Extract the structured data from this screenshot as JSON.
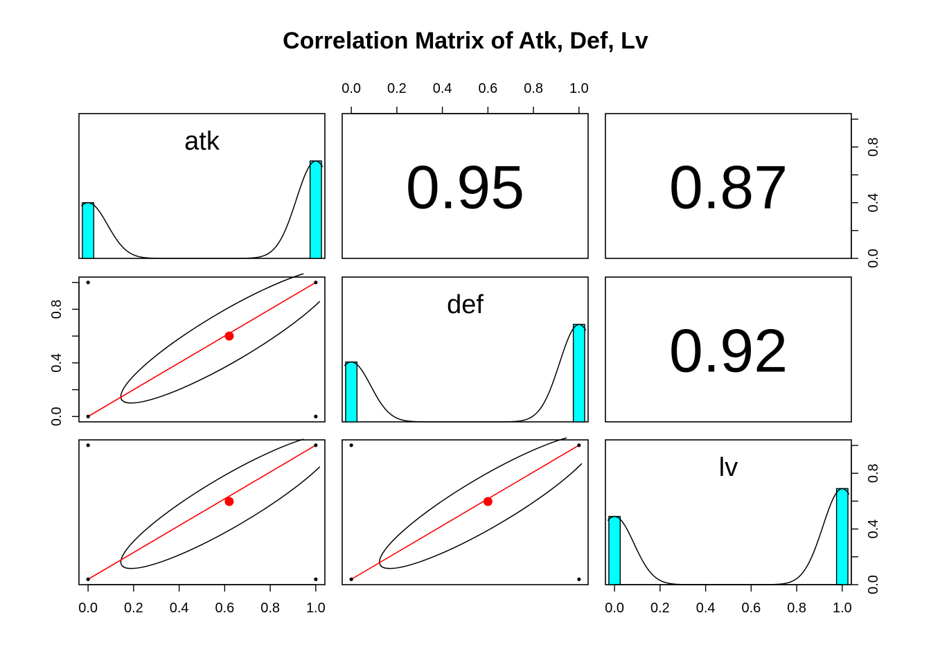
{
  "chart_data": {
    "type": "scatter-matrix",
    "title": "Correlation Matrix of Atk, Def, Lv",
    "variables": [
      "atk",
      "def",
      "lv"
    ],
    "correlations": [
      {
        "row": 0,
        "col": 1,
        "value": "0.95"
      },
      {
        "row": 0,
        "col": 2,
        "value": "0.87"
      },
      {
        "row": 1,
        "col": 2,
        "value": "0.92"
      }
    ],
    "axis_ticks": [
      0.0,
      0.2,
      0.4,
      0.6,
      0.8,
      1.0
    ],
    "axis_tick_labels": [
      "0.0",
      "0.2",
      "0.4",
      "0.6",
      "0.8",
      "1.0"
    ],
    "density_axis_ticks": [
      0.0,
      0.2,
      0.4,
      0.6,
      0.8
    ],
    "density_axis_tick_labels": [
      "0.0",
      "0.4",
      "0.8"
    ],
    "density_axis_label_values": [
      0.0,
      0.4,
      0.8
    ],
    "xlim": [
      -0.04,
      1.04
    ],
    "density_ylim": [
      0,
      1.04
    ],
    "histograms": [
      {
        "variable": "atk",
        "bins": [
          {
            "x0": -0.025,
            "x1": 0.025,
            "value": 0.4
          },
          {
            "x0": 0.975,
            "x1": 1.025,
            "value": 0.7
          }
        ]
      },
      {
        "variable": "def",
        "bins": [
          {
            "x0": -0.025,
            "x1": 0.025,
            "value": 0.43
          },
          {
            "x0": 0.975,
            "x1": 1.025,
            "value": 0.7
          }
        ]
      },
      {
        "variable": "lv",
        "bins": [
          {
            "x0": -0.025,
            "x1": 0.025,
            "value": 0.49
          },
          {
            "x0": 0.975,
            "x1": 1.025,
            "value": 0.69
          }
        ]
      }
    ],
    "density_curves": [
      {
        "variable": "atk",
        "left_peak": 0.4,
        "right_peak": 0.7
      },
      {
        "variable": "def",
        "left_peak": 0.43,
        "right_peak": 0.7
      },
      {
        "variable": "lv",
        "left_peak": 0.49,
        "right_peak": 0.69
      }
    ],
    "scatter_panels": [
      {
        "row": 1,
        "col": 0,
        "x_var": "atk",
        "y_var": "def",
        "points": [
          [
            0,
            0
          ],
          [
            0,
            1
          ],
          [
            1,
            0
          ],
          [
            1,
            1
          ]
        ],
        "mean": [
          0.62,
          0.6
        ],
        "fit": [
          [
            0,
            0
          ],
          [
            1,
            1
          ]
        ]
      },
      {
        "row": 2,
        "col": 0,
        "x_var": "atk",
        "y_var": "lv",
        "points": [
          [
            0,
            0
          ],
          [
            0,
            1
          ],
          [
            1,
            0
          ],
          [
            1,
            1
          ]
        ],
        "mean": [
          0.62,
          0.58
        ],
        "fit": [
          [
            0,
            0
          ],
          [
            1,
            1
          ]
        ]
      },
      {
        "row": 2,
        "col": 1,
        "x_var": "def",
        "y_var": "lv",
        "points": [
          [
            0,
            0
          ],
          [
            0,
            1
          ],
          [
            1,
            0
          ],
          [
            1,
            1
          ]
        ],
        "mean": [
          0.6,
          0.58
        ],
        "fit": [
          [
            0,
            0
          ],
          [
            1,
            1
          ]
        ]
      }
    ],
    "colors": {
      "histogram": "#00ffff",
      "fit_line": "#ff0000",
      "mean_point": "#ff0000",
      "points": "#000000"
    }
  }
}
